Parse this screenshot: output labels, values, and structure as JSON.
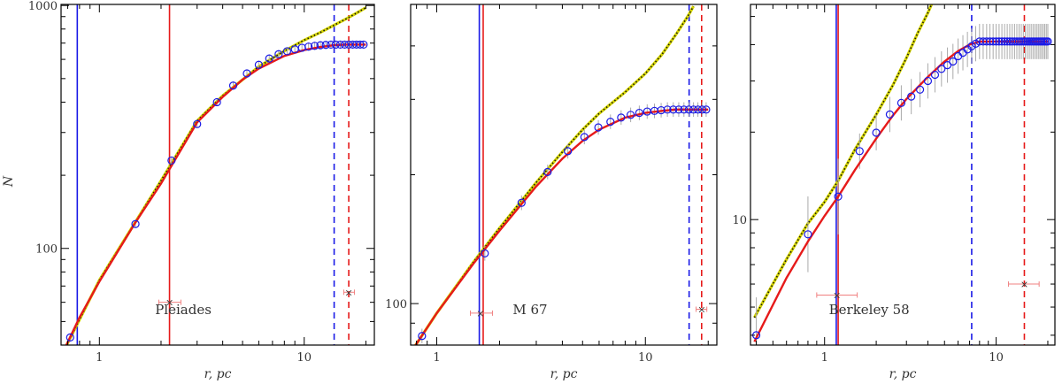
{
  "figure": {
    "ylabel": "N",
    "xlabel": "r, pc"
  },
  "chart_data": [
    {
      "type": "line",
      "title": "Pleiades",
      "xlabel": "r, pc",
      "ylabel": "N",
      "xscale": "log",
      "yscale": "log",
      "xlim": [
        0.65,
        22
      ],
      "ylim": [
        40,
        1010
      ],
      "x_ticks": [
        1,
        10
      ],
      "x_tick_labels": [
        "1",
        "10"
      ],
      "y_ticks": [
        100,
        1000
      ],
      "y_tick_labels": [
        "100",
        "1000"
      ],
      "vlines": [
        {
          "x": 0.78,
          "color": "#1a1ae6",
          "style": "solid"
        },
        {
          "x": 2.2,
          "color": "#e61a1a",
          "style": "solid"
        },
        {
          "x": 14.0,
          "color": "#1a1ae6",
          "style": "dashed"
        },
        {
          "x": 16.5,
          "color": "#e61a1a",
          "style": "dashed"
        }
      ],
      "error_markers": [
        {
          "x": 2.2,
          "y": 60,
          "xerr": [
            1.95,
            2.5
          ]
        },
        {
          "x": 16.5,
          "y": 66,
          "xerr": [
            15.6,
            17.6
          ]
        }
      ],
      "series": [
        {
          "kind": "points",
          "color": "#1a1ae6",
          "x": [
            0.72,
            1.5,
            2.25,
            3.0,
            3.75,
            4.5,
            5.25,
            6.0,
            6.75,
            7.5,
            8.25,
            9.0,
            9.75,
            10.5,
            11.25,
            12.0,
            12.75,
            13.5,
            14.25,
            15.0,
            15.75,
            16.5,
            17.25,
            18.0,
            18.75,
            19.5
          ],
          "y": [
            43,
            126,
            230,
            325,
            400,
            468,
            525,
            570,
            605,
            630,
            648,
            660,
            670,
            677,
            682,
            686,
            688,
            690,
            690,
            690,
            690,
            690,
            690,
            690,
            690,
            690
          ]
        },
        {
          "kind": "fit",
          "color": "#e61a1a",
          "x": [
            0.65,
            0.8,
            1.0,
            1.5,
            2.0,
            3.0,
            4.0,
            5.0,
            6.0,
            8.0,
            10.0,
            12.0,
            14.0,
            16.0,
            18.0,
            20.0
          ],
          "y": [
            36,
            52,
            73,
            128,
            185,
            330,
            420,
            495,
            550,
            620,
            655,
            675,
            686,
            690,
            690,
            690
          ]
        },
        {
          "kind": "model",
          "color": "#d4d400",
          "x": [
            0.65,
            1.0,
            2.0,
            3.0,
            4.0,
            6.0,
            8.0,
            10.0,
            12.0,
            14.0,
            16.0,
            18.0,
            20.0
          ],
          "y": [
            36,
            74,
            190,
            335,
            425,
            560,
            650,
            720,
            775,
            830,
            880,
            930,
            980
          ]
        }
      ]
    },
    {
      "type": "line",
      "title": "M 67",
      "xlabel": "r, pc",
      "ylabel": "",
      "xscale": "log",
      "yscale": "log",
      "xlim": [
        0.75,
        22
      ],
      "ylim": [
        80,
        500
      ],
      "x_ticks": [
        1,
        10
      ],
      "x_tick_labels": [
        "1",
        "10"
      ],
      "y_ticks": [
        100
      ],
      "y_tick_labels": [
        "100"
      ],
      "vlines": [
        {
          "x": 1.6,
          "color": "#1a1ae6",
          "style": "solid"
        },
        {
          "x": 1.67,
          "color": "#e61a1a",
          "style": "solid"
        },
        {
          "x": 16.2,
          "color": "#1a1ae6",
          "style": "dashed"
        },
        {
          "x": 18.6,
          "color": "#e61a1a",
          "style": "dashed"
        }
      ],
      "error_markers": [
        {
          "x": 1.62,
          "y": 95,
          "xerr": [
            1.45,
            1.85
          ]
        },
        {
          "x": 18.6,
          "y": 97,
          "xerr": [
            17.5,
            19.7
          ]
        }
      ],
      "series": [
        {
          "kind": "points",
          "color": "#1a1ae6",
          "x": [
            0.85,
            1.7,
            2.55,
            3.4,
            4.25,
            5.1,
            5.95,
            6.8,
            7.65,
            8.5,
            9.35,
            10.2,
            11.05,
            11.9,
            12.75,
            13.6,
            14.45,
            15.3,
            16.15,
            17.0,
            17.85,
            18.7,
            19.55
          ],
          "y": [
            84,
            131,
            172,
            203,
            227,
            245,
            258,
            266,
            272,
            276,
            279,
            281,
            282,
            283,
            284,
            284,
            284,
            284,
            284,
            284,
            284,
            284,
            284
          ]
        },
        {
          "kind": "fit",
          "color": "#e61a1a",
          "x": [
            0.78,
            1.0,
            1.5,
            2.0,
            3.0,
            4.0,
            5.0,
            6.0,
            8.0,
            10.0,
            12.0,
            14.0,
            16.0,
            18.0,
            20.0
          ],
          "y": [
            79,
            95,
            124,
            148,
            188,
            218,
            240,
            255,
            272,
            279,
            282,
            284,
            284,
            284,
            284
          ]
        },
        {
          "kind": "model",
          "color": "#d4d400",
          "x": [
            0.78,
            1.0,
            1.5,
            2.0,
            3.0,
            4.0,
            5.0,
            6.0,
            8.0,
            10.0,
            12.0,
            14.0,
            16.0,
            17.0
          ],
          "y": [
            79,
            95,
            125,
            150,
            192,
            226,
            255,
            278,
            312,
            345,
            382,
            425,
            470,
            495
          ]
        }
      ]
    },
    {
      "type": "line",
      "title": "Berkeley 58",
      "xlabel": "r, pc",
      "ylabel": "",
      "xscale": "log",
      "yscale": "log",
      "xlim": [
        0.37,
        22
      ],
      "ylim": [
        3.7,
        55
      ],
      "x_ticks": [
        1,
        10
      ],
      "x_tick_labels": [
        "1",
        "10"
      ],
      "y_ticks": [
        10
      ],
      "y_tick_labels": [
        "10"
      ],
      "vlines": [
        {
          "x": 1.17,
          "color": "#1a1ae6",
          "style": "solid"
        },
        {
          "x": 1.2,
          "color": "#e61a1a",
          "style": "solid"
        },
        {
          "x": 7.2,
          "color": "#1a1ae6",
          "style": "dashed"
        },
        {
          "x": 14.6,
          "color": "#e61a1a",
          "style": "dashed"
        }
      ],
      "error_markers": [
        {
          "x": 1.18,
          "y": 5.5,
          "xerr": [
            0.9,
            1.55
          ]
        },
        {
          "x": 14.6,
          "y": 6.0,
          "xerr": [
            11.8,
            17.8
          ]
        }
      ],
      "series": [
        {
          "kind": "points",
          "color": "#1a1ae6",
          "x": [
            0.4,
            0.8,
            1.2,
            1.6,
            2.0,
            2.4,
            2.8,
            3.2,
            3.6,
            4.0,
            4.4,
            4.8,
            5.2,
            5.6,
            6.0,
            6.4,
            6.8,
            7.2,
            7.6,
            8.0,
            8.4,
            8.8,
            9.2,
            9.6,
            10.0,
            10.4,
            10.8,
            11.2,
            11.6,
            12.0,
            12.4,
            12.8,
            13.2,
            13.6,
            14.0,
            14.4,
            14.8,
            15.2,
            15.6,
            16.0,
            16.4,
            16.8,
            17.2,
            17.6,
            18.0,
            18.4,
            18.8,
            19.2,
            19.6,
            20.0
          ],
          "y": [
            4.0,
            8.9,
            12.0,
            17.2,
            19.9,
            23.0,
            25.2,
            26.5,
            28.0,
            30.0,
            31.5,
            33.0,
            34.0,
            35.0,
            36.5,
            37.5,
            38.5,
            39.5,
            40.3,
            41.0,
            41.0,
            41.0,
            41.0,
            41.0,
            41.0,
            41.0,
            41.0,
            41.0,
            41.0,
            41.0,
            41.0,
            41.0,
            41.0,
            41.0,
            41.0,
            41.0,
            41.0,
            41.0,
            41.0,
            41.0,
            41.0,
            41.0,
            41.0,
            41.0,
            41.0,
            41.0,
            41.0,
            41.0,
            41.0,
            41.0
          ]
        },
        {
          "kind": "fit",
          "color": "#e61a1a",
          "x": [
            0.39,
            0.6,
            0.8,
            1.0,
            1.2,
            1.5,
            2.0,
            2.5,
            3.0,
            4.0,
            5.0,
            6.0,
            7.0,
            8.0,
            10.0,
            14.0,
            20.0
          ],
          "y": [
            3.8,
            6.3,
            8.4,
            10.3,
            12.0,
            14.8,
            19.0,
            22.8,
            26.0,
            31.0,
            35.0,
            38.0,
            40.0,
            41.0,
            41.0,
            41.0,
            41.0
          ]
        },
        {
          "kind": "model",
          "color": "#d4d400",
          "x": [
            0.39,
            0.6,
            0.8,
            1.0,
            1.2,
            1.5,
            2.0,
            2.5,
            3.0,
            3.5,
            4.0,
            4.2
          ],
          "y": [
            4.6,
            7.3,
            9.7,
            11.5,
            13.6,
            17.4,
            23.0,
            29.0,
            36.0,
            44.0,
            51.5,
            55.0
          ]
        }
      ]
    }
  ]
}
